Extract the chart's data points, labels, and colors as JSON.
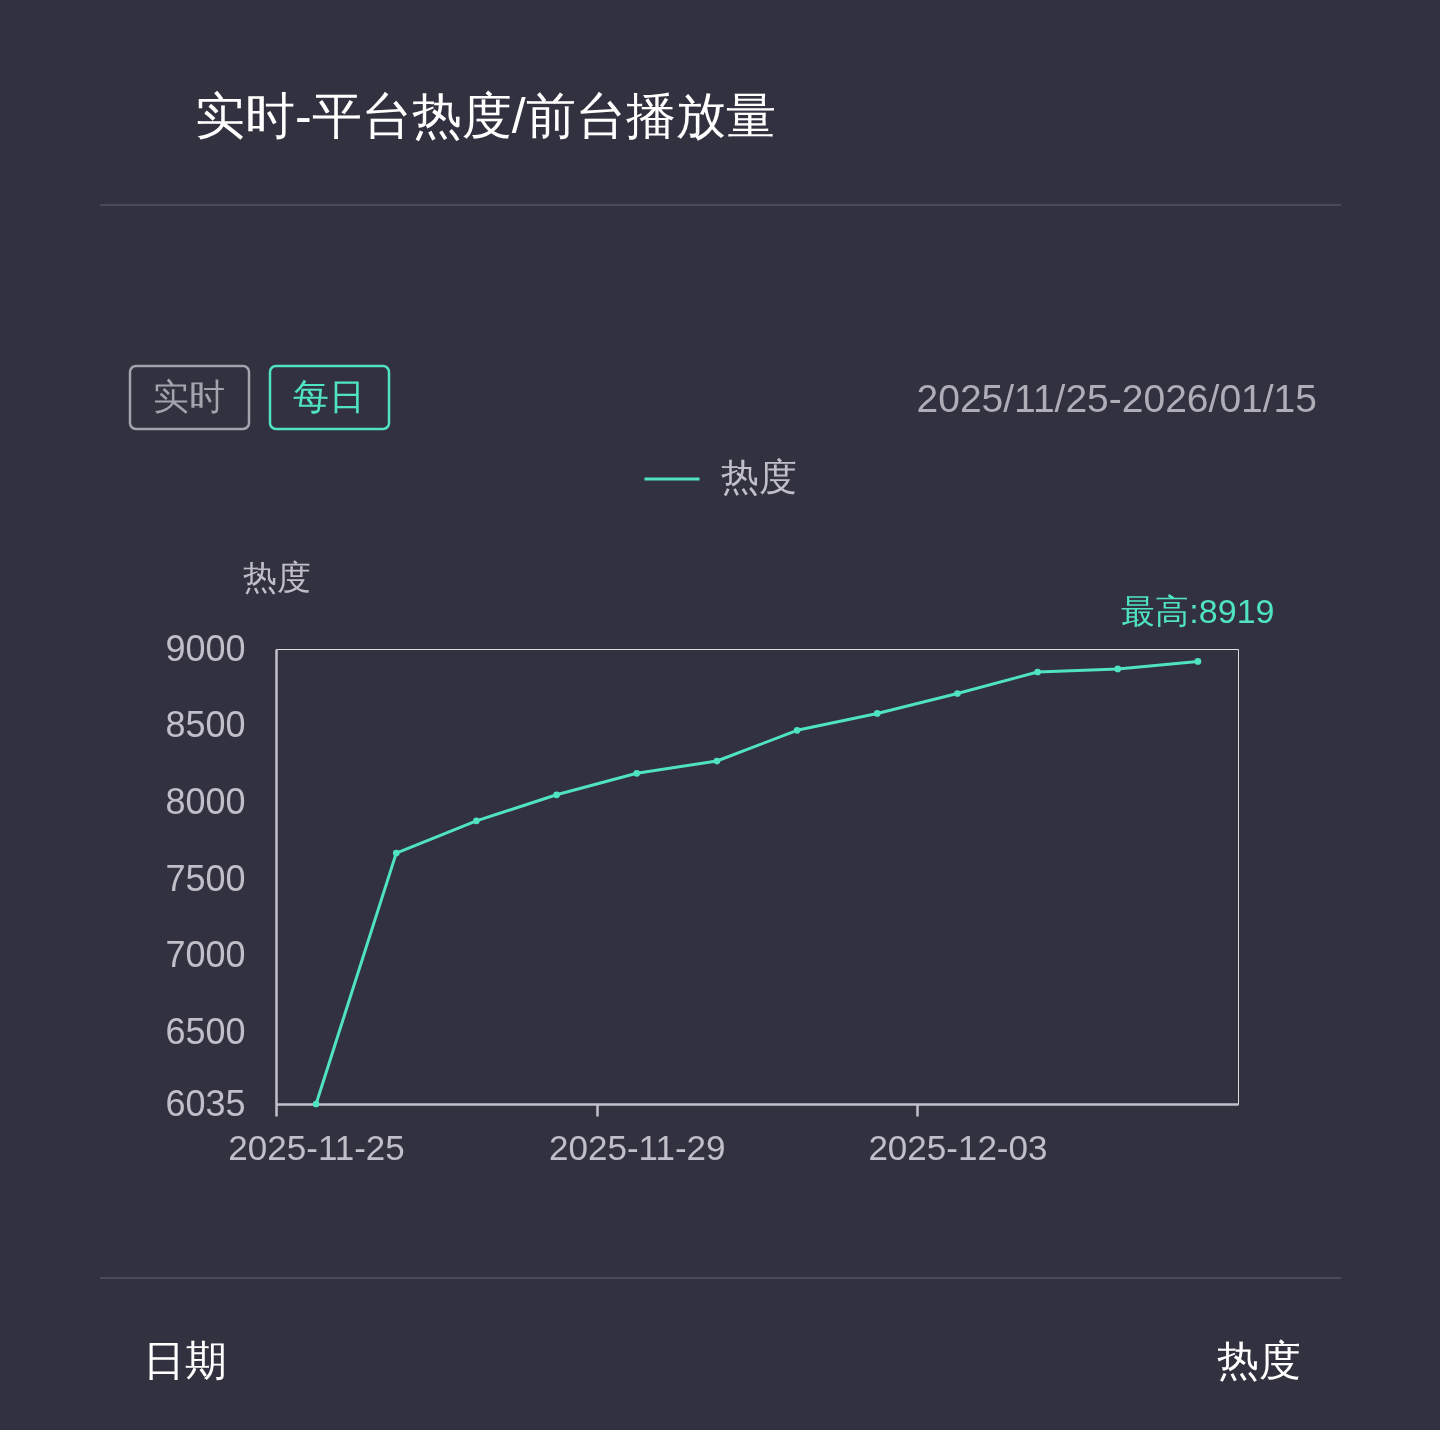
{
  "chart_data": {
    "type": "line",
    "title": "实时-平台热度/前台播放量",
    "subtitle": "2025/11/25-2026/01/15",
    "ylabel": "热度",
    "categories": [
      "2025-11-25",
      null,
      null,
      null,
      "2025-11-29",
      null,
      null,
      null,
      "2025-12-03",
      null,
      null,
      null
    ],
    "series": [
      {
        "name": "热度",
        "color": "#50e3c2",
        "values": [
          6035,
          7670,
          7880,
          8050,
          8190,
          8270,
          8470,
          8580,
          8710,
          8850,
          8870,
          8919
        ]
      }
    ],
    "ylim": [
      6035,
      9000
    ],
    "yticks": [
      6035,
      6500,
      7000,
      7500,
      8000,
      8500,
      9000
    ],
    "annotations": [
      {
        "text": "最高:8919",
        "y": 8919
      },
      "实时",
      "每日",
      "日期",
      "热度"
    ],
    "legend": "top",
    "marker": "circle",
    "line_style": "solid"
  }
}
